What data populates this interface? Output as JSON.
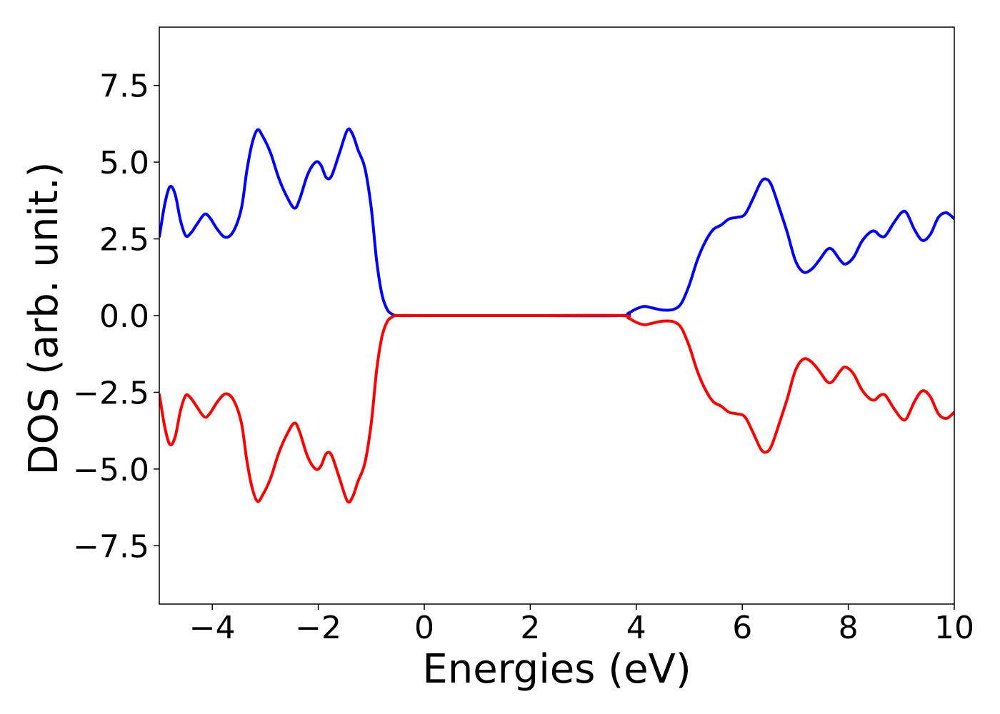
{
  "chart_data": {
    "type": "line",
    "title": "",
    "xlabel": "Energies (eV)",
    "ylabel": "DOS (arb. unit.)",
    "xlim": [
      -5,
      10
    ],
    "ylim": [
      -9.4,
      9.4
    ],
    "grid": false,
    "x_ticks": [
      {
        "value": -4,
        "label": "−4"
      },
      {
        "value": -2,
        "label": "−2"
      },
      {
        "value": 0,
        "label": "0"
      },
      {
        "value": 2,
        "label": "2"
      },
      {
        "value": 4,
        "label": "4"
      },
      {
        "value": 6,
        "label": "6"
      },
      {
        "value": 8,
        "label": "8"
      },
      {
        "value": 10,
        "label": "10"
      }
    ],
    "y_ticks": [
      {
        "value": 7.5,
        "label": "7.5"
      },
      {
        "value": 5.0,
        "label": "5.0"
      },
      {
        "value": 2.5,
        "label": "2.5"
      },
      {
        "value": 0.0,
        "label": "0.0"
      },
      {
        "value": -2.5,
        "label": "−2.5"
      },
      {
        "value": -5.0,
        "label": "−5.0"
      },
      {
        "value": -7.5,
        "label": "−7.5"
      }
    ],
    "series": [
      {
        "color": "#0000ff",
        "points": [
          [
            -5.0,
            2.55
          ],
          [
            -4.9,
            3.6
          ],
          [
            -4.8,
            4.2
          ],
          [
            -4.7,
            3.95
          ],
          [
            -4.6,
            3.1
          ],
          [
            -4.5,
            2.6
          ],
          [
            -4.4,
            2.7
          ],
          [
            -4.3,
            2.95
          ],
          [
            -4.15,
            3.3
          ],
          [
            -4.05,
            3.2
          ],
          [
            -3.9,
            2.8
          ],
          [
            -3.75,
            2.55
          ],
          [
            -3.6,
            2.75
          ],
          [
            -3.45,
            3.5
          ],
          [
            -3.35,
            4.7
          ],
          [
            -3.25,
            5.6
          ],
          [
            -3.15,
            6.05
          ],
          [
            -3.05,
            5.85
          ],
          [
            -2.9,
            5.3
          ],
          [
            -2.75,
            4.5
          ],
          [
            -2.6,
            3.9
          ],
          [
            -2.45,
            3.5
          ],
          [
            -2.35,
            3.8
          ],
          [
            -2.2,
            4.6
          ],
          [
            -2.05,
            5.0
          ],
          [
            -1.95,
            4.9
          ],
          [
            -1.85,
            4.5
          ],
          [
            -1.75,
            4.55
          ],
          [
            -1.6,
            5.3
          ],
          [
            -1.45,
            6.05
          ],
          [
            -1.35,
            5.9
          ],
          [
            -1.25,
            5.4
          ],
          [
            -1.12,
            4.8
          ],
          [
            -1.0,
            3.5
          ],
          [
            -0.9,
            1.8
          ],
          [
            -0.8,
            0.7
          ],
          [
            -0.7,
            0.2
          ],
          [
            -0.6,
            0.04
          ],
          [
            -0.5,
            0.0
          ],
          [
            0.0,
            0.0
          ],
          [
            2.0,
            0.0
          ],
          [
            3.7,
            0.0
          ],
          [
            3.85,
            0.08
          ],
          [
            4.0,
            0.22
          ],
          [
            4.15,
            0.3
          ],
          [
            4.3,
            0.25
          ],
          [
            4.5,
            0.18
          ],
          [
            4.7,
            0.2
          ],
          [
            4.85,
            0.4
          ],
          [
            5.0,
            1.0
          ],
          [
            5.15,
            1.8
          ],
          [
            5.3,
            2.4
          ],
          [
            5.45,
            2.8
          ],
          [
            5.6,
            2.95
          ],
          [
            5.75,
            3.15
          ],
          [
            5.9,
            3.2
          ],
          [
            6.05,
            3.3
          ],
          [
            6.2,
            3.8
          ],
          [
            6.35,
            4.35
          ],
          [
            6.45,
            4.45
          ],
          [
            6.55,
            4.25
          ],
          [
            6.7,
            3.5
          ],
          [
            6.85,
            2.7
          ],
          [
            7.0,
            1.8
          ],
          [
            7.15,
            1.42
          ],
          [
            7.3,
            1.5
          ],
          [
            7.45,
            1.8
          ],
          [
            7.6,
            2.15
          ],
          [
            7.7,
            2.15
          ],
          [
            7.85,
            1.8
          ],
          [
            7.95,
            1.68
          ],
          [
            8.1,
            1.9
          ],
          [
            8.25,
            2.4
          ],
          [
            8.4,
            2.7
          ],
          [
            8.5,
            2.75
          ],
          [
            8.6,
            2.6
          ],
          [
            8.7,
            2.6
          ],
          [
            8.85,
            3.0
          ],
          [
            9.0,
            3.35
          ],
          [
            9.1,
            3.35
          ],
          [
            9.25,
            2.8
          ],
          [
            9.4,
            2.45
          ],
          [
            9.55,
            2.65
          ],
          [
            9.7,
            3.2
          ],
          [
            9.85,
            3.35
          ],
          [
            10.0,
            3.15
          ]
        ]
      },
      {
        "color": "#ff0000",
        "points": [
          [
            -5.0,
            -2.55
          ],
          [
            -4.9,
            -3.6
          ],
          [
            -4.8,
            -4.2
          ],
          [
            -4.7,
            -3.95
          ],
          [
            -4.6,
            -3.1
          ],
          [
            -4.5,
            -2.6
          ],
          [
            -4.4,
            -2.7
          ],
          [
            -4.3,
            -2.95
          ],
          [
            -4.15,
            -3.3
          ],
          [
            -4.05,
            -3.2
          ],
          [
            -3.9,
            -2.8
          ],
          [
            -3.75,
            -2.55
          ],
          [
            -3.6,
            -2.75
          ],
          [
            -3.45,
            -3.5
          ],
          [
            -3.35,
            -4.7
          ],
          [
            -3.25,
            -5.6
          ],
          [
            -3.15,
            -6.05
          ],
          [
            -3.05,
            -5.85
          ],
          [
            -2.9,
            -5.3
          ],
          [
            -2.75,
            -4.5
          ],
          [
            -2.6,
            -3.9
          ],
          [
            -2.45,
            -3.5
          ],
          [
            -2.35,
            -3.8
          ],
          [
            -2.2,
            -4.6
          ],
          [
            -2.05,
            -5.0
          ],
          [
            -1.95,
            -4.9
          ],
          [
            -1.85,
            -4.5
          ],
          [
            -1.75,
            -4.55
          ],
          [
            -1.6,
            -5.3
          ],
          [
            -1.45,
            -6.05
          ],
          [
            -1.35,
            -5.9
          ],
          [
            -1.25,
            -5.4
          ],
          [
            -1.12,
            -4.8
          ],
          [
            -1.0,
            -3.5
          ],
          [
            -0.9,
            -1.8
          ],
          [
            -0.8,
            -0.7
          ],
          [
            -0.7,
            -0.2
          ],
          [
            -0.6,
            -0.04
          ],
          [
            -0.5,
            0.0
          ],
          [
            0.0,
            0.0
          ],
          [
            2.0,
            0.0
          ],
          [
            3.7,
            0.0
          ],
          [
            3.85,
            -0.08
          ],
          [
            4.0,
            -0.22
          ],
          [
            4.15,
            -0.3
          ],
          [
            4.3,
            -0.25
          ],
          [
            4.5,
            -0.18
          ],
          [
            4.7,
            -0.2
          ],
          [
            4.85,
            -0.4
          ],
          [
            5.0,
            -1.0
          ],
          [
            5.15,
            -1.8
          ],
          [
            5.3,
            -2.4
          ],
          [
            5.45,
            -2.8
          ],
          [
            5.6,
            -2.95
          ],
          [
            5.75,
            -3.15
          ],
          [
            5.9,
            -3.2
          ],
          [
            6.05,
            -3.3
          ],
          [
            6.2,
            -3.8
          ],
          [
            6.35,
            -4.35
          ],
          [
            6.45,
            -4.45
          ],
          [
            6.55,
            -4.25
          ],
          [
            6.7,
            -3.5
          ],
          [
            6.85,
            -2.7
          ],
          [
            7.0,
            -1.8
          ],
          [
            7.15,
            -1.42
          ],
          [
            7.3,
            -1.5
          ],
          [
            7.45,
            -1.8
          ],
          [
            7.6,
            -2.15
          ],
          [
            7.7,
            -2.15
          ],
          [
            7.85,
            -1.8
          ],
          [
            7.95,
            -1.68
          ],
          [
            8.1,
            -1.9
          ],
          [
            8.25,
            -2.4
          ],
          [
            8.4,
            -2.7
          ],
          [
            8.5,
            -2.75
          ],
          [
            8.6,
            -2.6
          ],
          [
            8.7,
            -2.6
          ],
          [
            8.85,
            -3.0
          ],
          [
            9.0,
            -3.35
          ],
          [
            9.1,
            -3.35
          ],
          [
            9.25,
            -2.8
          ],
          [
            9.4,
            -2.45
          ],
          [
            9.55,
            -2.65
          ],
          [
            9.7,
            -3.2
          ],
          [
            9.85,
            -3.35
          ],
          [
            10.0,
            -3.15
          ]
        ]
      }
    ]
  }
}
